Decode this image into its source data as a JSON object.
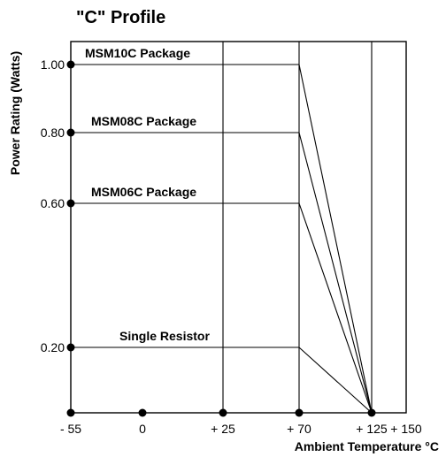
{
  "chart_data": {
    "type": "line",
    "title": "\"C\" Profile",
    "xlabel": "Ambient Temperature °C",
    "ylabel": "Power Rating (Watts)",
    "x_ticks": [
      {
        "value": -55,
        "label": "- 55"
      },
      {
        "value": 0,
        "label": "0"
      },
      {
        "value": 25,
        "label": "+ 25"
      },
      {
        "value": 70,
        "label": "+ 70"
      },
      {
        "value": 125,
        "label": "+ 125"
      },
      {
        "value": 150,
        "label": "+ 150"
      }
    ],
    "y_ticks": [
      {
        "value": 0.2,
        "label": "0.20"
      },
      {
        "value": 0.6,
        "label": "0.60"
      },
      {
        "value": 0.8,
        "label": "0.80"
      },
      {
        "value": 1.0,
        "label": "1.00"
      }
    ],
    "xlim": [
      -55,
      150
    ],
    "ylim": [
      0,
      1.05
    ],
    "grid_x": [
      25,
      70,
      125
    ],
    "series": [
      {
        "name": "MSM10C Package",
        "points": [
          [
            -55,
            1.0
          ],
          [
            70,
            1.0
          ],
          [
            125,
            0
          ]
        ]
      },
      {
        "name": "MSM08C Package",
        "points": [
          [
            -55,
            0.8
          ],
          [
            70,
            0.8
          ],
          [
            125,
            0
          ]
        ]
      },
      {
        "name": "MSM06C Package",
        "points": [
          [
            -55,
            0.6
          ],
          [
            70,
            0.6
          ],
          [
            125,
            0
          ]
        ]
      },
      {
        "name": "Single Resistor",
        "points": [
          [
            -55,
            0.2
          ],
          [
            70,
            0.2
          ],
          [
            125,
            0
          ]
        ]
      }
    ]
  }
}
